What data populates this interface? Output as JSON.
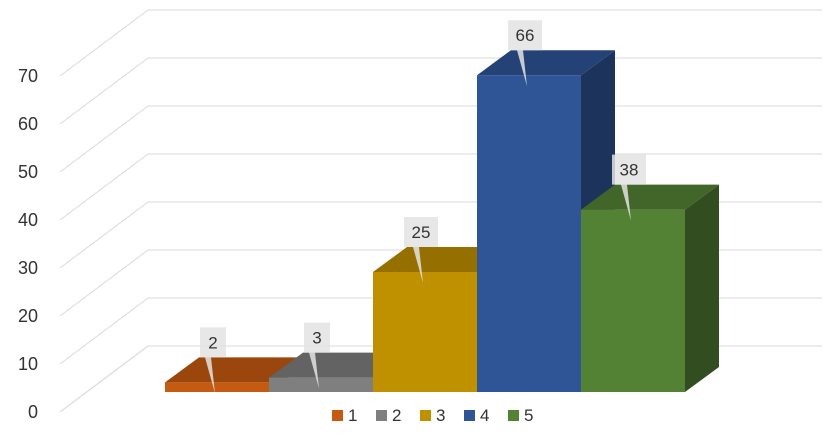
{
  "chart_data": {
    "type": "bar",
    "categories": [
      "1",
      "2",
      "3",
      "4",
      "5"
    ],
    "values": [
      2,
      3,
      25,
      66,
      38
    ],
    "colors": [
      "#c55a11",
      "#7f7f7f",
      "#bf9000",
      "#2f5597",
      "#548235"
    ],
    "ylim": [
      0,
      70
    ],
    "yticks": [
      "0",
      "10",
      "20",
      "30",
      "40",
      "50",
      "60",
      "70"
    ],
    "legend": [
      "1",
      "2",
      "3",
      "4",
      "5"
    ],
    "legend_position": "bottom",
    "grid": true,
    "style": "3d-clustered-column",
    "data_labels": [
      "2",
      "3",
      "25",
      "66",
      "38"
    ]
  }
}
